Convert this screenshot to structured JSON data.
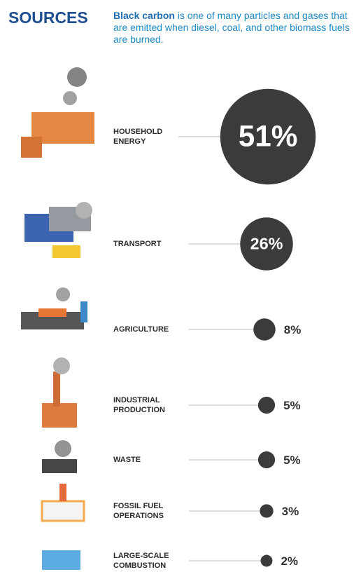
{
  "chart_data": {
    "type": "bubble",
    "title": "SOURCES",
    "subtitle_bold": "Black carbon",
    "subtitle": "is one of many particles and gases that are emitted when diesel, coal, and other biomass fuels are burned.",
    "categories": [
      "HOUSEHOLD\nENERGY",
      "TRANSPORT",
      "AGRICULTURE",
      "INDUSTRIAL\nPRODUCTION",
      "WASTE",
      "FOSSIL FUEL\nOPERATIONS",
      "LARGE-SCALE\nCOMBUSTION"
    ],
    "values": [
      51,
      26,
      8,
      5,
      5,
      3,
      2
    ],
    "value_labels": [
      "51%",
      "26%",
      "8%",
      "5%",
      "5%",
      "3%",
      "2%"
    ],
    "color": "#3b3b3d"
  }
}
